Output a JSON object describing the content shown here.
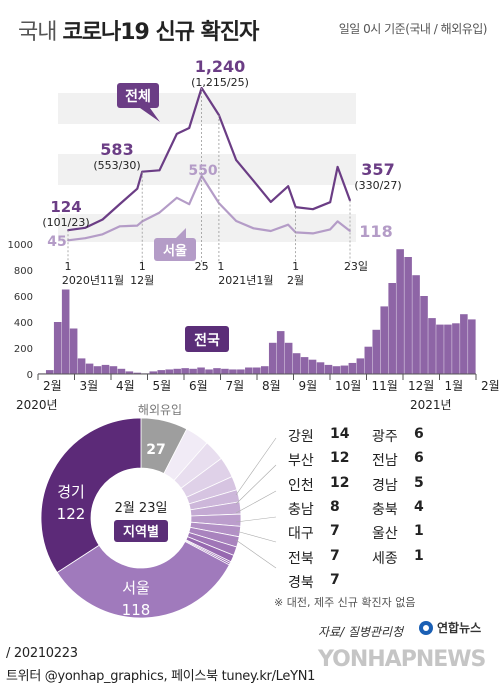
{
  "header": {
    "title_light": "국내",
    "title_bold": "코로나19 신규 확진자",
    "basis": "일일 0시 기준(국내 / 해외유입)"
  },
  "colors": {
    "total": "#6b3d85",
    "seoul": "#b49cc7",
    "bar": "#7a4a96",
    "overseas": "#9e9e9e",
    "band": "#f1f1f1"
  },
  "chart_data": [
    {
      "type": "line",
      "title": "",
      "series": [
        {
          "name": "전체",
          "x": [
            "2020-11-01",
            "2020-11-08",
            "2020-11-15",
            "2020-11-22",
            "2020-11-29",
            "2020-12-01",
            "2020-12-08",
            "2020-12-15",
            "2020-12-20",
            "2020-12-25",
            "2021-01-01",
            "2021-01-08",
            "2021-01-15",
            "2021-01-22",
            "2021-01-29",
            "2021-02-01",
            "2021-02-08",
            "2021-02-15",
            "2021-02-18",
            "2021-02-23"
          ],
          "values": [
            124,
            143,
            208,
            330,
            450,
            583,
            594,
            880,
            926,
            1240,
            1028,
            674,
            512,
            346,
            469,
            305,
            289,
            344,
            621,
            357
          ]
        },
        {
          "name": "서울",
          "x": [
            "2020-11-01",
            "2020-11-08",
            "2020-11-15",
            "2020-11-22",
            "2020-11-29",
            "2020-12-01",
            "2020-12-08",
            "2020-12-15",
            "2020-12-20",
            "2020-12-25",
            "2021-01-01",
            "2021-01-08",
            "2021-01-15",
            "2021-01-22",
            "2021-01-29",
            "2021-02-01",
            "2021-02-08",
            "2021-02-15",
            "2021-02-18",
            "2021-02-23"
          ],
          "values": [
            45,
            61,
            92,
            155,
            160,
            193,
            262,
            378,
            328,
            550,
            337,
            196,
            139,
            118,
            167,
            107,
            99,
            130,
            193,
            118
          ]
        }
      ],
      "annotations": [
        {
          "label": "1,240",
          "sub": "(1,215/25)"
        },
        {
          "label": "583",
          "sub": "(553/30)"
        },
        {
          "label": "124",
          "sub": "(101/23)"
        },
        {
          "label": "357",
          "sub": "(330/27)"
        },
        {
          "label": "550"
        },
        {
          "label": "45"
        },
        {
          "label": "118"
        }
      ],
      "tick_labels": [
        "1",
        "2020년11월",
        "1",
        "12월",
        "25",
        "1",
        "2021년1월",
        "1",
        "2월",
        "23일"
      ],
      "series_tags": [
        "전체",
        "서울"
      ]
    },
    {
      "type": "bar",
      "title": "전국",
      "ylim": [
        0,
        1000
      ],
      "yticks": [
        0,
        200,
        400,
        600,
        800,
        1000
      ],
      "months": [
        "2월",
        "3월",
        "4월",
        "5월",
        "6월",
        "7월",
        "8월",
        "9월",
        "10월",
        "11월",
        "12월",
        "1월",
        "2월"
      ],
      "year_labels": [
        "2020년",
        "2021년"
      ],
      "weekly_values": [
        5,
        30,
        400,
        650,
        350,
        120,
        80,
        60,
        70,
        60,
        40,
        20,
        10,
        5,
        20,
        30,
        35,
        40,
        45,
        40,
        50,
        35,
        45,
        40,
        35,
        35,
        50,
        50,
        60,
        240,
        330,
        240,
        160,
        130,
        110,
        90,
        70,
        60,
        65,
        85,
        120,
        210,
        340,
        520,
        700,
        960,
        900,
        760,
        600,
        430,
        380,
        380,
        390,
        460,
        420
      ]
    },
    {
      "type": "pie",
      "title": "지역별",
      "date_label": "2월 23일",
      "slices": [
        {
          "label": "해외유입",
          "value": 27
        },
        {
          "label": "강원",
          "value": 14
        },
        {
          "label": "부산",
          "value": 12
        },
        {
          "label": "인천",
          "value": 12
        },
        {
          "label": "충남",
          "value": 8
        },
        {
          "label": "대구",
          "value": 7
        },
        {
          "label": "전북",
          "value": 7
        },
        {
          "label": "경북",
          "value": 7
        },
        {
          "label": "광주",
          "value": 6
        },
        {
          "label": "전남",
          "value": 6
        },
        {
          "label": "경남",
          "value": 5
        },
        {
          "label": "충북",
          "value": 4
        },
        {
          "label": "울산",
          "value": 1
        },
        {
          "label": "세종",
          "value": 1
        },
        {
          "label": "서울",
          "value": 118
        },
        {
          "label": "경기",
          "value": 122
        }
      ]
    }
  ],
  "legend_table": {
    "left": [
      {
        "name": "강원",
        "value": "14"
      },
      {
        "name": "부산",
        "value": "12"
      },
      {
        "name": "인천",
        "value": "12"
      },
      {
        "name": "충남",
        "value": "8"
      },
      {
        "name": "대구",
        "value": "7"
      },
      {
        "name": "전북",
        "value": "7"
      },
      {
        "name": "경북",
        "value": "7"
      }
    ],
    "right": [
      {
        "name": "광주",
        "value": "6"
      },
      {
        "name": "전남",
        "value": "6"
      },
      {
        "name": "경남",
        "value": "5"
      },
      {
        "name": "충북",
        "value": "4"
      },
      {
        "name": "울산",
        "value": "1"
      },
      {
        "name": "세종",
        "value": "1"
      }
    ]
  },
  "footer": {
    "note": "※ 대전, 제주 신규 확진자 없음",
    "source": "자료/ 질병관리청",
    "brand": "연합뉴스",
    "watermark": "YONHAPNEWS",
    "date": "/ 20210223",
    "credit": "트위터 @yonhap_graphics, 페이스북 tuney.kr/LeYN1"
  }
}
